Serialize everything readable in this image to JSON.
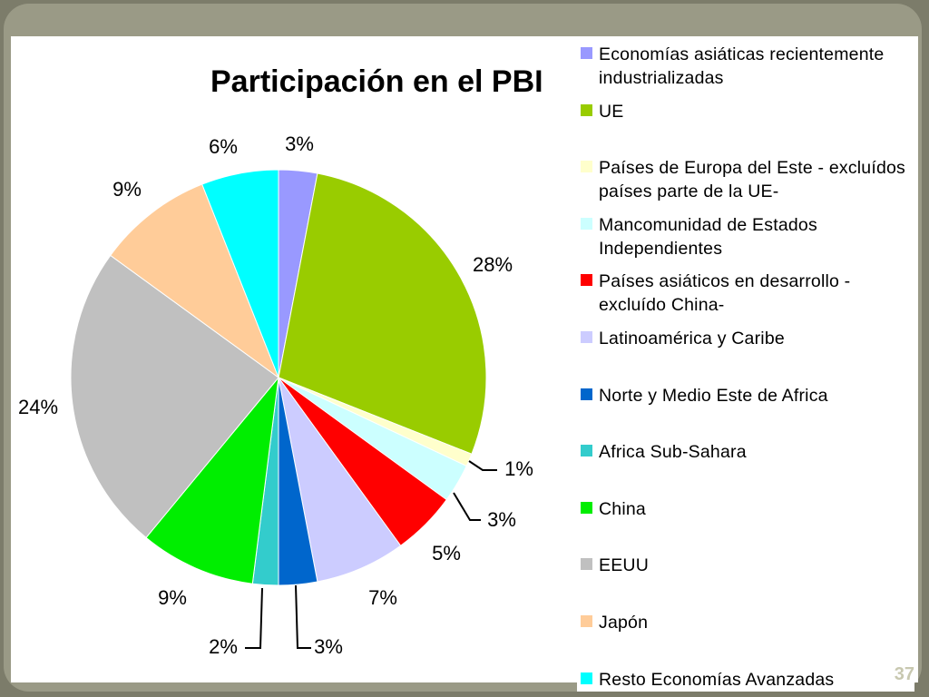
{
  "chart_data": {
    "type": "pie",
    "title": "Participación en el PBI",
    "categories": [
      "Economías asiáticas recientemente industrializadas",
      "UE",
      "Países de Europa del Este - excluídos países parte de la UE-",
      "Mancomunidad de Estados Independientes",
      "Países asiáticos en desarrollo - excluído China-",
      "Latinoamérica y Caribe",
      "Norte y Medio Este de Africa",
      "Africa Sub-Sahara",
      "China",
      "EEUU",
      "Japón",
      "Resto Economías Avanzadas"
    ],
    "values": [
      3,
      28,
      1,
      3,
      5,
      7,
      3,
      2,
      9,
      24,
      9,
      6
    ],
    "value_labels": [
      "3%",
      "28%",
      "1%",
      "3%",
      "5%",
      "7%",
      "3%",
      "2%",
      "9%",
      "24%",
      "9%",
      "6%"
    ],
    "colors": [
      "#9999ff",
      "#99cc00",
      "#ffffcc",
      "#ccffff",
      "#ff0000",
      "#ccccff",
      "#0066cc",
      "#33cccc",
      "#00ee00",
      "#c0c0c0",
      "#ffcc99",
      "#00ffff"
    ],
    "legend": "right"
  },
  "slide_number": "37"
}
